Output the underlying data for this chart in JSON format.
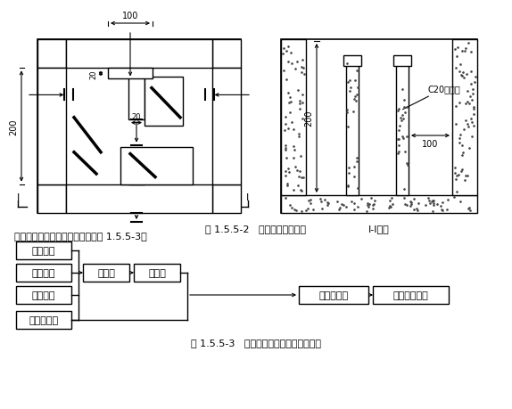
{
  "fig_title1": "图 1.5.5-2   沉淀池结构示意图",
  "fig_title2": "图 1.5.5-3   地面排水系统水流走向示意图",
  "intro_text": "施工地面排水系统的水流走向见图 1.5.5-3。",
  "section_label": "I-I剖面",
  "dim_100": "100",
  "dim_20_top": "20",
  "dim_20_mid": "20",
  "dim_200_left": "200",
  "dim_200_right": "200",
  "dim_100_right": "100",
  "label_c20": "C20混凝土",
  "boxes": {
    "flow_items": [
      "地表雨水",
      "基坑降水",
      "基坑明水",
      "洗车槽污水"
    ],
    "mid_items": [
      "排水沟",
      "沉砂池"
    ],
    "right_items": [
      "三级沉淀池",
      "市政排水管道"
    ]
  },
  "bg_color": "#ffffff",
  "line_color": "#000000"
}
